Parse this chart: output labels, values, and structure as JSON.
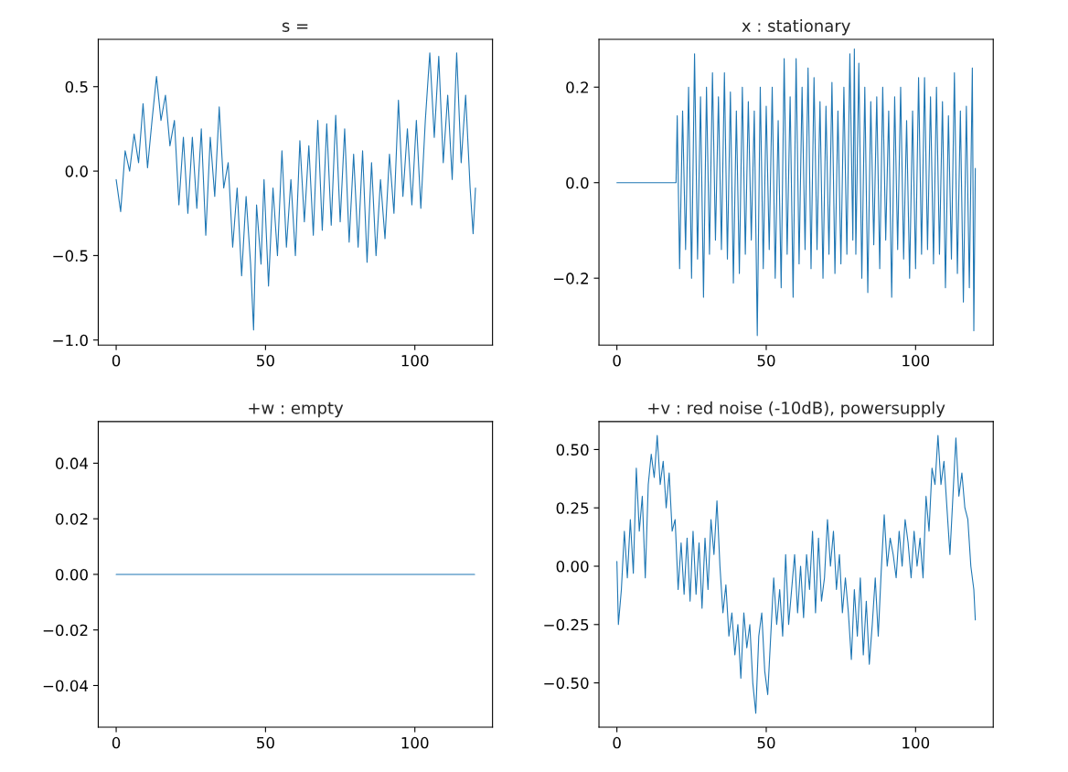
{
  "chart_data": [
    {
      "type": "line",
      "title": "s =",
      "xlim": [
        -6,
        126
      ],
      "xticks": [
        0,
        50,
        100
      ],
      "ylim": [
        -1.03,
        0.78
      ],
      "yticks": [
        {
          "value": -1.0,
          "label": "−1.0"
        },
        {
          "value": -0.5,
          "label": "−0.5"
        },
        {
          "value": 0.0,
          "label": "0.0"
        },
        {
          "value": 0.5,
          "label": "0.5"
        }
      ],
      "grid": false,
      "marker": "none",
      "line_style": "solid",
      "series": [
        {
          "color": "#1f77b4",
          "x": [
            0,
            1.5,
            3,
            4.5,
            6,
            7.5,
            9,
            10.5,
            12,
            13.5,
            15,
            16.5,
            18,
            19.5,
            21,
            22.5,
            24,
            25.5,
            27,
            28.5,
            30,
            31.5,
            33,
            34.5,
            36,
            37.5,
            39,
            40.5,
            42,
            43.5,
            45,
            46,
            47,
            48.5,
            49.5,
            51,
            52.5,
            54,
            55.5,
            57,
            58.5,
            60,
            61.5,
            63,
            64.5,
            66,
            67.5,
            69,
            70.5,
            72,
            73.5,
            75,
            76.5,
            78,
            79.5,
            81,
            82.5,
            84,
            85.5,
            87,
            88.5,
            90,
            91.5,
            93,
            94.5,
            96,
            97.5,
            99,
            100.5,
            102,
            103.5,
            105,
            106.5,
            108,
            109.5,
            111,
            112.5,
            114,
            115.5,
            117,
            118.5,
            119.5,
            120.3
          ],
          "values": [
            -0.05,
            -0.24,
            0.12,
            0.0,
            0.22,
            0.05,
            0.4,
            0.02,
            0.3,
            0.56,
            0.3,
            0.45,
            0.15,
            0.3,
            -0.2,
            0.2,
            -0.25,
            0.2,
            -0.22,
            0.25,
            -0.38,
            0.2,
            -0.15,
            0.38,
            -0.1,
            0.05,
            -0.45,
            -0.1,
            -0.62,
            -0.15,
            -0.55,
            -0.94,
            -0.2,
            -0.55,
            -0.05,
            -0.68,
            -0.1,
            -0.5,
            0.12,
            -0.45,
            -0.05,
            -0.5,
            0.18,
            -0.3,
            0.15,
            -0.38,
            0.3,
            -0.35,
            0.28,
            -0.32,
            0.33,
            -0.3,
            0.25,
            -0.42,
            0.1,
            -0.45,
            0.12,
            -0.54,
            0.05,
            -0.5,
            -0.05,
            -0.4,
            0.1,
            -0.25,
            0.42,
            -0.15,
            0.25,
            -0.2,
            0.3,
            -0.22,
            0.3,
            0.7,
            0.2,
            0.68,
            0.05,
            0.45,
            -0.05,
            0.7,
            0.05,
            0.45,
            -0.1,
            -0.37,
            -0.1
          ]
        }
      ]
    },
    {
      "type": "line",
      "title": "x : stationary",
      "xlim": [
        -6,
        126
      ],
      "xticks": [
        0,
        50,
        100
      ],
      "ylim": [
        -0.34,
        0.3
      ],
      "yticks": [
        {
          "value": -0.2,
          "label": "−0.2"
        },
        {
          "value": 0.0,
          "label": "0.0"
        },
        {
          "value": 0.2,
          "label": "0.2"
        }
      ],
      "grid": false,
      "marker": "none",
      "line_style": "solid",
      "series": [
        {
          "color": "#1f77b4",
          "x": [
            0,
            19.8,
            20.2,
            21,
            22,
            23,
            24,
            25,
            26,
            27,
            28,
            29,
            30,
            31,
            32,
            33,
            34,
            35,
            36,
            37,
            38,
            39,
            40,
            41,
            42,
            43,
            44,
            45,
            46,
            47,
            48,
            49,
            50,
            51,
            52,
            53,
            54,
            55,
            56,
            57,
            58,
            59,
            60,
            61,
            62,
            63,
            64,
            65,
            66,
            67,
            68,
            69,
            70,
            71,
            72,
            73,
            74,
            75,
            76,
            77,
            78,
            79,
            79.5,
            80,
            81,
            82,
            83,
            84,
            85,
            86,
            87,
            88,
            89,
            90,
            91,
            92,
            93,
            94,
            95,
            96,
            97,
            98,
            99,
            100,
            101,
            102,
            103,
            104,
            105,
            106,
            107,
            108,
            109,
            110,
            111,
            112,
            113,
            114,
            115,
            116,
            117,
            118,
            119,
            119.5,
            120
          ],
          "values": [
            0,
            0,
            0.14,
            -0.18,
            0.15,
            -0.14,
            0.2,
            -0.2,
            0.27,
            -0.16,
            0.18,
            -0.24,
            0.2,
            -0.15,
            0.23,
            -0.12,
            0.18,
            -0.14,
            0.23,
            -0.16,
            0.19,
            -0.21,
            0.15,
            -0.19,
            0.2,
            -0.15,
            0.17,
            -0.12,
            0.15,
            -0.32,
            0.2,
            -0.18,
            0.16,
            -0.14,
            0.2,
            -0.2,
            0.13,
            -0.22,
            0.26,
            -0.15,
            0.18,
            -0.24,
            0.26,
            -0.17,
            0.2,
            -0.14,
            0.24,
            -0.18,
            0.22,
            -0.14,
            0.17,
            -0.2,
            0.16,
            -0.15,
            0.21,
            -0.19,
            0.15,
            -0.17,
            0.2,
            -0.15,
            0.27,
            -0.12,
            0.28,
            -0.15,
            0.25,
            -0.2,
            0.2,
            -0.23,
            0.17,
            -0.13,
            0.18,
            -0.18,
            0.2,
            -0.12,
            0.15,
            -0.24,
            0.18,
            -0.14,
            0.2,
            -0.16,
            0.13,
            -0.2,
            0.15,
            -0.18,
            0.22,
            -0.15,
            0.22,
            -0.14,
            0.18,
            -0.17,
            0.2,
            -0.15,
            0.17,
            -0.22,
            0.14,
            -0.16,
            0.23,
            -0.19,
            0.15,
            -0.25,
            0.16,
            -0.22,
            0.24,
            -0.31,
            0.03
          ]
        }
      ]
    },
    {
      "type": "line",
      "title": "+w : empty",
      "xlim": [
        -6,
        126
      ],
      "xticks": [
        0,
        50,
        100
      ],
      "ylim": [
        -0.055,
        0.055
      ],
      "yticks": [
        {
          "value": -0.04,
          "label": "−0.04"
        },
        {
          "value": -0.02,
          "label": "−0.02"
        },
        {
          "value": 0.0,
          "label": "0.00"
        },
        {
          "value": 0.02,
          "label": "0.02"
        },
        {
          "value": 0.04,
          "label": "0.04"
        }
      ],
      "grid": false,
      "marker": "none",
      "line_style": "solid",
      "series": [
        {
          "color": "#1f77b4",
          "x": [
            0,
            120
          ],
          "values": [
            0,
            0
          ]
        }
      ]
    },
    {
      "type": "line",
      "title": "+v : red noise (-10dB), powersupply",
      "xlim": [
        -6,
        126
      ],
      "xticks": [
        0,
        50,
        100
      ],
      "ylim": [
        -0.69,
        0.62
      ],
      "yticks": [
        {
          "value": -0.5,
          "label": "−0.50"
        },
        {
          "value": -0.25,
          "label": "−0.25"
        },
        {
          "value": 0.0,
          "label": "0.00"
        },
        {
          "value": 0.25,
          "label": "0.25"
        },
        {
          "value": 0.5,
          "label": "0.50"
        }
      ],
      "grid": false,
      "marker": "none",
      "line_style": "solid",
      "series": [
        {
          "color": "#1f77b4",
          "x": [
            0,
            0.5,
            1.5,
            2.5,
            3.5,
            4.5,
            5.5,
            6.5,
            7.5,
            8.5,
            9.5,
            10.5,
            11.5,
            12.5,
            13.5,
            14.5,
            15.5,
            16.5,
            17.5,
            18.5,
            19.5,
            20.5,
            21.5,
            22.5,
            23.5,
            24.5,
            25.5,
            26.5,
            27.5,
            28.5,
            29.5,
            30.5,
            31.5,
            32.5,
            33.5,
            34.5,
            35.5,
            36.5,
            37.5,
            38.5,
            39.5,
            40.5,
            41.5,
            42.5,
            43.5,
            44.5,
            45.5,
            46.5,
            47.5,
            48.5,
            49.5,
            50.5,
            51.5,
            52.5,
            53.5,
            54.5,
            55.5,
            56.5,
            57.5,
            58.5,
            59.5,
            60.5,
            61.5,
            62.5,
            63.5,
            64.5,
            65.5,
            66.5,
            67.5,
            68.5,
            69.5,
            70.5,
            71.5,
            72.5,
            73.5,
            74.5,
            75.5,
            76.5,
            77.5,
            78.5,
            79.5,
            80.5,
            81.5,
            82.5,
            83.5,
            84.5,
            85.5,
            86.5,
            87.5,
            88.5,
            89.5,
            90.5,
            91.5,
            92.5,
            93.5,
            94.5,
            95.5,
            96.5,
            97.5,
            98.5,
            99.5,
            100.5,
            101.5,
            102.5,
            103.5,
            104.5,
            105.5,
            106.5,
            107.5,
            108.5,
            109.5,
            110.5,
            111.5,
            112.5,
            113.5,
            114.5,
            115.5,
            116.5,
            117.5,
            118.5,
            119.5,
            120
          ],
          "values": [
            0.02,
            -0.25,
            -0.1,
            0.15,
            -0.05,
            0.2,
            -0.03,
            0.42,
            0.15,
            0.3,
            -0.05,
            0.35,
            0.48,
            0.38,
            0.56,
            0.35,
            0.45,
            0.25,
            0.4,
            0.15,
            0.2,
            -0.1,
            0.1,
            -0.12,
            0.12,
            -0.15,
            0.15,
            -0.12,
            0.1,
            -0.18,
            0.12,
            -0.1,
            0.2,
            0.05,
            0.28,
            0.0,
            -0.2,
            -0.08,
            -0.3,
            -0.2,
            -0.38,
            -0.25,
            -0.48,
            -0.2,
            -0.35,
            -0.25,
            -0.5,
            -0.63,
            -0.3,
            -0.2,
            -0.45,
            -0.55,
            -0.3,
            -0.05,
            -0.25,
            -0.1,
            -0.3,
            0.05,
            -0.25,
            -0.1,
            0.05,
            -0.2,
            0.0,
            -0.22,
            0.05,
            -0.1,
            0.15,
            -0.2,
            0.12,
            -0.15,
            -0.05,
            0.2,
            0.0,
            0.15,
            -0.1,
            0.05,
            -0.2,
            -0.05,
            -0.2,
            -0.4,
            -0.1,
            -0.3,
            -0.05,
            -0.38,
            -0.15,
            -0.42,
            -0.25,
            -0.05,
            -0.3,
            -0.02,
            0.22,
            0.0,
            0.12,
            0.05,
            -0.05,
            0.15,
            0.0,
            0.2,
            0.1,
            -0.05,
            0.15,
            0.0,
            0.12,
            -0.05,
            0.3,
            0.15,
            0.42,
            0.35,
            0.56,
            0.35,
            0.45,
            0.25,
            0.05,
            0.3,
            0.55,
            0.3,
            0.4,
            0.25,
            0.2,
            0.0,
            -0.1,
            -0.23
          ]
        }
      ]
    }
  ]
}
